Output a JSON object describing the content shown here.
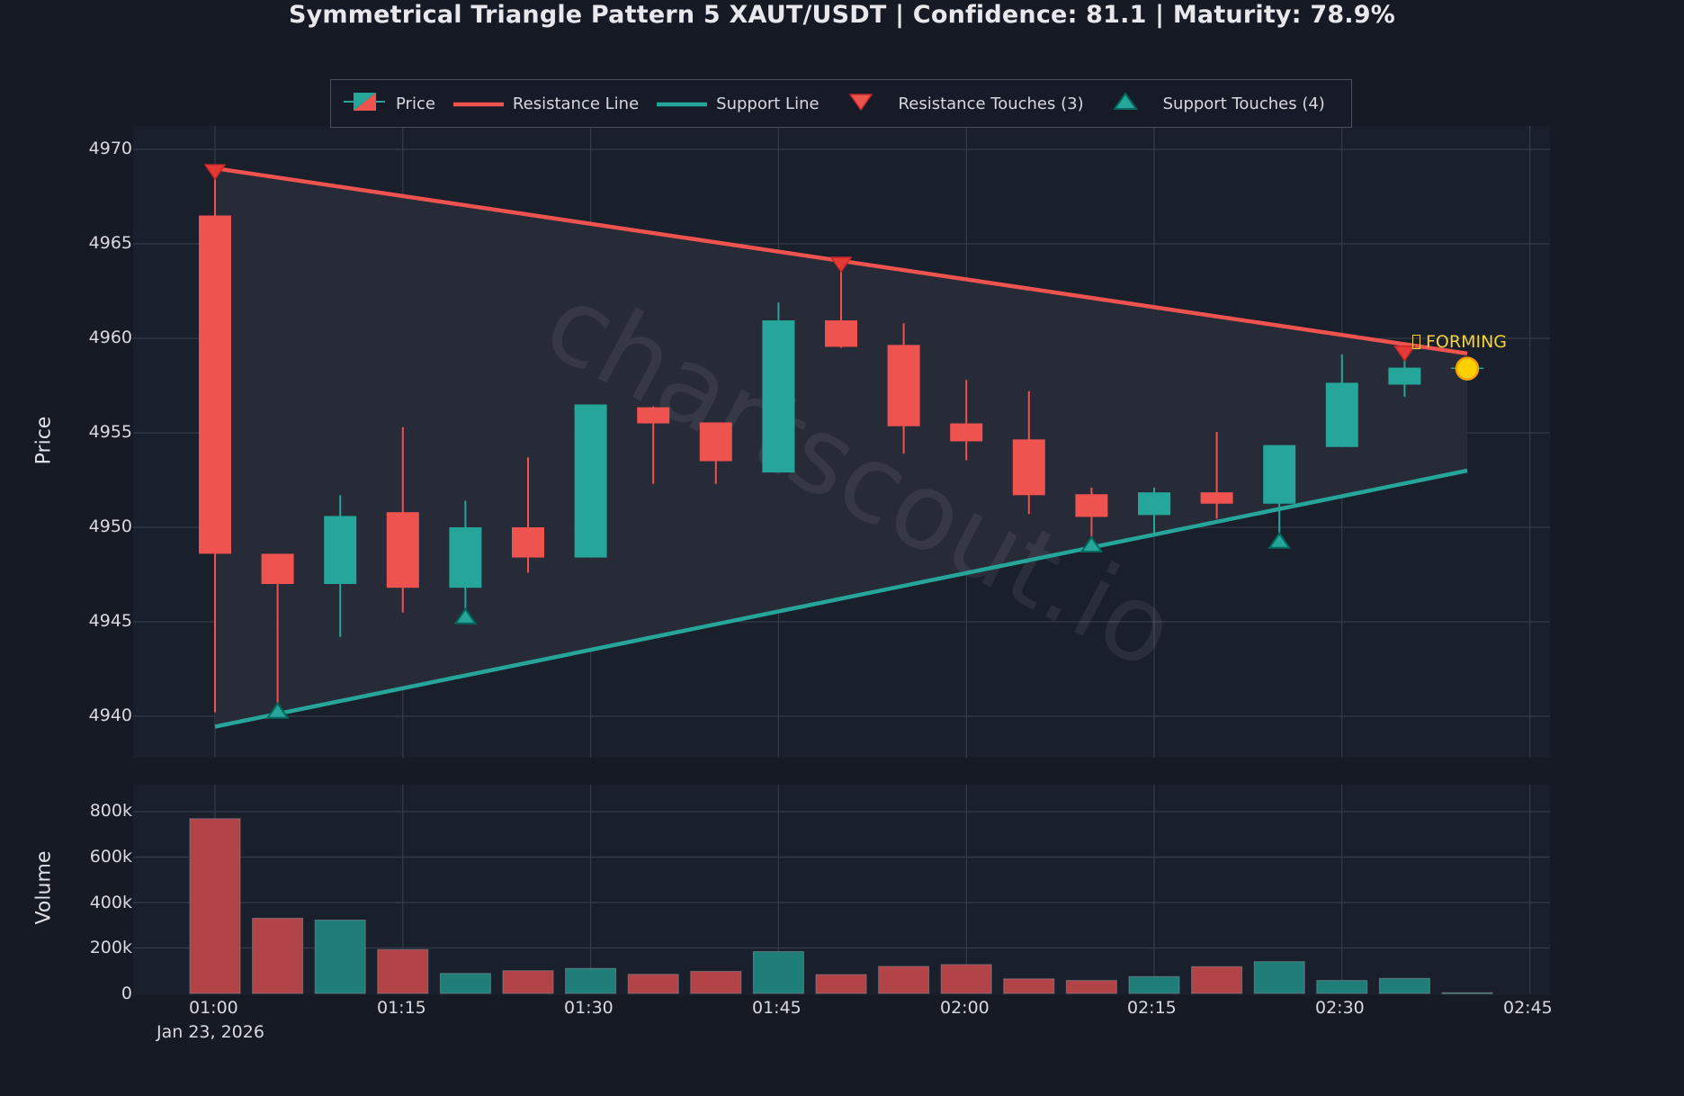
{
  "title": "Symmetrical Triangle Pattern 5 XAUT/USDT | Confidence: 81.1 | Maturity: 78.9%",
  "legend": {
    "items": [
      {
        "label": "Price",
        "icon": "candlestick-icon"
      },
      {
        "label": "Resistance Line",
        "icon": "red-line-icon"
      },
      {
        "label": "Support Line",
        "icon": "teal-line-icon"
      },
      {
        "label": "Resistance Touches (3)",
        "icon": "triangle-down-icon"
      },
      {
        "label": "Support Touches (4)",
        "icon": "triangle-up-icon"
      }
    ]
  },
  "annotation": {
    "glyph": "missing-glyph-box",
    "text": "FORMING"
  },
  "watermark": "chartscout.io",
  "colors": {
    "background": "#151a25",
    "plot_bg": "#1a1f2c",
    "triangle_fill": "#282b38",
    "grid": "#363b48",
    "up": "#26a69a",
    "down": "#ef5350",
    "volume_up": "#1f7f78",
    "volume_down": "#b24347",
    "resistance": "#ef5350",
    "support": "#26a69a",
    "annotation": "#f2d23a",
    "marker_current": "#ffd000"
  },
  "axes": {
    "price_ylabel": "Price",
    "volume_ylabel": "Volume",
    "price_yticks": [
      "4970",
      "4965",
      "4960",
      "4955",
      "4950",
      "4945",
      "4940"
    ],
    "volume_yticks": [
      "800k",
      "600k",
      "400k",
      "200k",
      "0"
    ],
    "xticks": [
      "01:00",
      "01:15",
      "01:30",
      "01:45",
      "02:00",
      "02:15",
      "02:30",
      "02:45"
    ],
    "date_label": "Jan 23, 2026"
  },
  "chart_data": {
    "type": "candlestick",
    "title": "Symmetrical Triangle Pattern 5 XAUT/USDT | Confidence: 81.1 | Maturity: 78.9%",
    "xlabel": "",
    "ylabel": "Price",
    "ylim": [
      4938.4,
      4971.2
    ],
    "grid": true,
    "legend_position": "top-center",
    "categories": [
      "01:00",
      "01:05",
      "01:10",
      "01:15",
      "01:20",
      "01:25",
      "01:30",
      "01:35",
      "01:40",
      "01:45",
      "01:50",
      "01:55",
      "02:00",
      "02:05",
      "02:10",
      "02:15",
      "02:20",
      "02:25",
      "02:30",
      "02:35",
      "02:40"
    ],
    "ohlc": [
      {
        "t": "01:00",
        "o": 4966.5,
        "h": 4968.9,
        "l": 4940.2,
        "c": 4948.6
      },
      {
        "t": "01:05",
        "o": 4948.6,
        "h": 4948.6,
        "l": 4940.4,
        "c": 4947.0
      },
      {
        "t": "01:10",
        "o": 4947.0,
        "h": 4951.7,
        "l": 4944.2,
        "c": 4950.6
      },
      {
        "t": "01:15",
        "o": 4950.8,
        "h": 4955.3,
        "l": 4945.5,
        "c": 4946.8
      },
      {
        "t": "01:20",
        "o": 4946.8,
        "h": 4951.4,
        "l": 4945.3,
        "c": 4950.0
      },
      {
        "t": "01:25",
        "o": 4950.0,
        "h": 4953.7,
        "l": 4947.6,
        "c": 4948.4
      },
      {
        "t": "01:30",
        "o": 4948.4,
        "h": 4956.5,
        "l": 4948.4,
        "c": 4956.5
      },
      {
        "t": "01:35",
        "o": 4956.35,
        "h": 4956.4,
        "l": 4952.3,
        "c": 4955.5
      },
      {
        "t": "01:40",
        "o": 4955.55,
        "h": 4955.55,
        "l": 4952.3,
        "c": 4953.5
      },
      {
        "t": "01:45",
        "o": 4952.9,
        "h": 4961.9,
        "l": 4952.9,
        "c": 4960.95
      },
      {
        "t": "01:50",
        "o": 4960.95,
        "h": 4964.0,
        "l": 4959.5,
        "c": 4959.55
      },
      {
        "t": "01:55",
        "o": 4959.65,
        "h": 4960.8,
        "l": 4953.9,
        "c": 4955.35
      },
      {
        "t": "02:00",
        "o": 4955.5,
        "h": 4957.8,
        "l": 4953.55,
        "c": 4954.55
      },
      {
        "t": "02:05",
        "o": 4954.65,
        "h": 4957.2,
        "l": 4950.7,
        "c": 4951.7
      },
      {
        "t": "02:10",
        "o": 4951.75,
        "h": 4952.1,
        "l": 4949.3,
        "c": 4950.55
      },
      {
        "t": "02:15",
        "o": 4950.65,
        "h": 4952.1,
        "l": 4949.7,
        "c": 4951.85
      },
      {
        "t": "02:20",
        "o": 4951.85,
        "h": 4955.05,
        "l": 4950.45,
        "c": 4951.25
      },
      {
        "t": "02:25",
        "o": 4951.25,
        "h": 4954.35,
        "l": 4949.4,
        "c": 4954.35
      },
      {
        "t": "02:30",
        "o": 4954.25,
        "h": 4959.15,
        "l": 4954.25,
        "c": 4957.65
      },
      {
        "t": "02:35",
        "o": 4957.55,
        "h": 4959.2,
        "l": 4956.9,
        "c": 4958.45
      },
      {
        "t": "02:40",
        "o": 4958.4,
        "h": 4958.45,
        "l": 4958.35,
        "c": 4958.45
      }
    ],
    "volume": {
      "ylabel": "Volume",
      "ylim": [
        0,
        900000
      ],
      "values": [
        769000,
        331000,
        323000,
        193000,
        88000,
        100000,
        110000,
        84000,
        97000,
        184000,
        83000,
        119000,
        127000,
        64000,
        57000,
        74000,
        118000,
        140000,
        57000,
        66000,
        3000
      ]
    },
    "series": [
      {
        "name": "Resistance Line",
        "type": "line",
        "x": [
          "01:00",
          "02:40"
        ],
        "values": [
          4969.0,
          4959.2
        ]
      },
      {
        "name": "Support Line",
        "type": "line",
        "x": [
          "01:00",
          "02:40"
        ],
        "values": [
          4939.45,
          4953.0
        ]
      },
      {
        "name": "Resistance Touches (3)",
        "type": "marker",
        "x": [
          "01:00",
          "01:50",
          "02:35"
        ],
        "values": [
          4968.9,
          4964.0,
          4959.3
        ]
      },
      {
        "name": "Support Touches (4)",
        "type": "marker",
        "x": [
          "01:05",
          "01:20",
          "02:10",
          "02:25"
        ],
        "values": [
          4940.2,
          4945.2,
          4949.0,
          4949.2
        ]
      }
    ],
    "annotations": [
      {
        "text": "FORMING",
        "x": "02:40",
        "y": 4959.6
      },
      {
        "type": "current-price-marker",
        "x": "02:40",
        "y": 4958.4
      }
    ]
  }
}
